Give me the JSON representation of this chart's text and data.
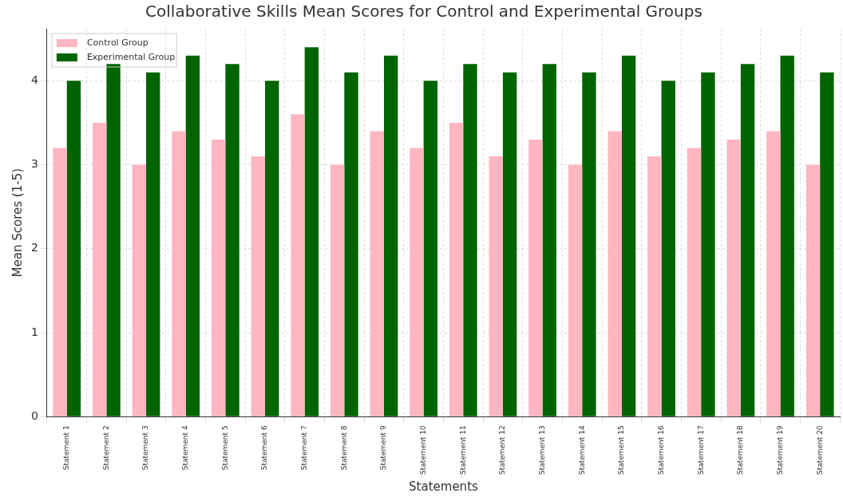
{
  "chart_data": {
    "type": "bar",
    "title": "Collaborative Skills Mean Scores for Control and Experimental Groups",
    "xlabel": "Statements",
    "ylabel": "Mean Scores (1-5)",
    "categories": [
      "Statement 1",
      "Statement 2",
      "Statement 3",
      "Statement 4",
      "Statement 5",
      "Statement 6",
      "Statement 7",
      "Statement 8",
      "Statement 9",
      "Statement 10",
      "Statement 11",
      "Statement 12",
      "Statement 13",
      "Statement 14",
      "Statement 15",
      "Statement 16",
      "Statement 17",
      "Statement 18",
      "Statement 19",
      "Statement 20"
    ],
    "series": [
      {
        "name": "Control Group",
        "color": "#ffb6c1",
        "values": [
          3.2,
          3.5,
          3.0,
          3.4,
          3.3,
          3.1,
          3.6,
          3.0,
          3.4,
          3.2,
          3.5,
          3.1,
          3.3,
          3.0,
          3.4,
          3.1,
          3.2,
          3.3,
          3.4,
          3.0
        ]
      },
      {
        "name": "Experimental Group",
        "color": "#006400",
        "values": [
          4.0,
          4.2,
          4.1,
          4.3,
          4.2,
          4.0,
          4.4,
          4.1,
          4.3,
          4.0,
          4.2,
          4.1,
          4.2,
          4.1,
          4.3,
          4.0,
          4.1,
          4.2,
          4.3,
          4.1
        ]
      }
    ],
    "ylim": [
      0,
      4.62
    ],
    "yticks": [
      0,
      1,
      2,
      3,
      4
    ],
    "grid": true,
    "legend": "top left"
  }
}
